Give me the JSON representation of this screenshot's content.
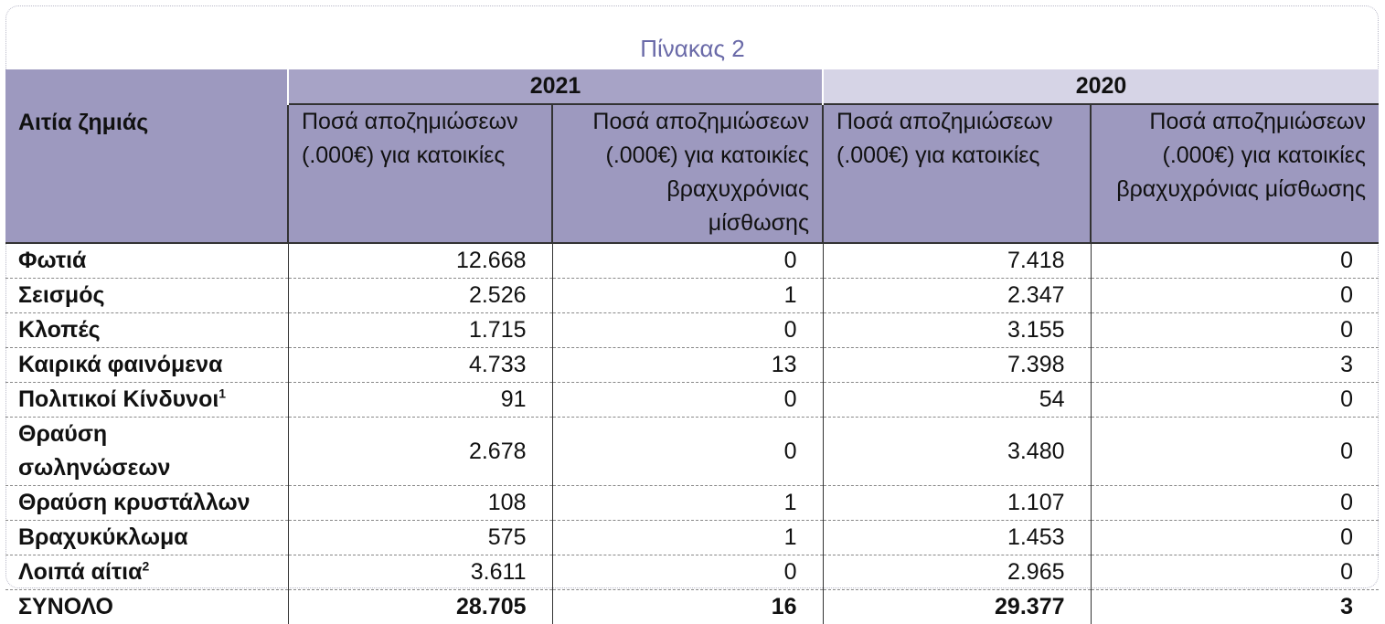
{
  "title": "Πίνακας 2",
  "headers": {
    "cause": "Αιτία ζημιάς",
    "year1": "2021",
    "year2": "2020",
    "col_residential": "Ποσά αποζημιώσεων (.000€) για κατοικίες",
    "col_short_term": "Ποσά αποζημιώσεων (.000€) για κατοικίες βραχυχρόνιας μίσθωσης"
  },
  "rows": [
    {
      "label": "Φωτιά",
      "sup": "",
      "v2021_res": "12.668",
      "v2021_st": "0",
      "v2020_res": "7.418",
      "v2020_st": "0"
    },
    {
      "label": "Σεισμός",
      "sup": "",
      "v2021_res": "2.526",
      "v2021_st": "1",
      "v2020_res": "2.347",
      "v2020_st": "0"
    },
    {
      "label": "Κλοπές",
      "sup": "",
      "v2021_res": "1.715",
      "v2021_st": "0",
      "v2020_res": "3.155",
      "v2020_st": "0"
    },
    {
      "label": "Καιρικά φαινόμενα",
      "sup": "",
      "v2021_res": "4.733",
      "v2021_st": "13",
      "v2020_res": "7.398",
      "v2020_st": "3"
    },
    {
      "label": "Πολιτικοί Κίνδυνοι",
      "sup": "1",
      "v2021_res": "91",
      "v2021_st": "0",
      "v2020_res": "54",
      "v2020_st": "0"
    },
    {
      "label": "Θραύση σωληνώσεων",
      "sup": "",
      "v2021_res": "2.678",
      "v2021_st": "0",
      "v2020_res": "3.480",
      "v2020_st": "0"
    },
    {
      "label": "Θραύση κρυστάλλων",
      "sup": "",
      "v2021_res": "108",
      "v2021_st": "1",
      "v2020_res": "1.107",
      "v2020_st": "0"
    },
    {
      "label": "Βραχυκύκλωμα",
      "sup": "",
      "v2021_res": "575",
      "v2021_st": "1",
      "v2020_res": "1.453",
      "v2020_st": "0"
    },
    {
      "label": "Λοιπά αίτια",
      "sup": "2",
      "v2021_res": "3.611",
      "v2021_st": "0",
      "v2020_res": "2.965",
      "v2020_st": "0"
    }
  ],
  "total": {
    "label": "ΣΥΝΟΛΟ",
    "v2021_res": "28.705",
    "v2021_st": "16",
    "v2020_res": "29.377",
    "v2020_st": "3"
  },
  "colors": {
    "header_dark": "#9d99bf",
    "year2021_bg": "#a7a3c6",
    "year2020_bg": "#d6d4e6",
    "title": "#6a6aa8"
  }
}
